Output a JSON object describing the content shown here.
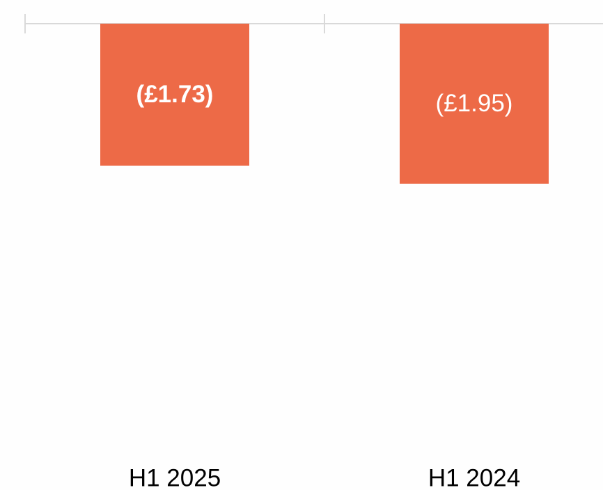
{
  "chart_data": {
    "type": "bar",
    "categories": [
      "H1 2025",
      "H1 2024"
    ],
    "values": [
      -1.73,
      -1.95
    ],
    "value_labels": [
      "(£1.73)",
      "(£1.95)"
    ],
    "color": "#ed6a47"
  }
}
